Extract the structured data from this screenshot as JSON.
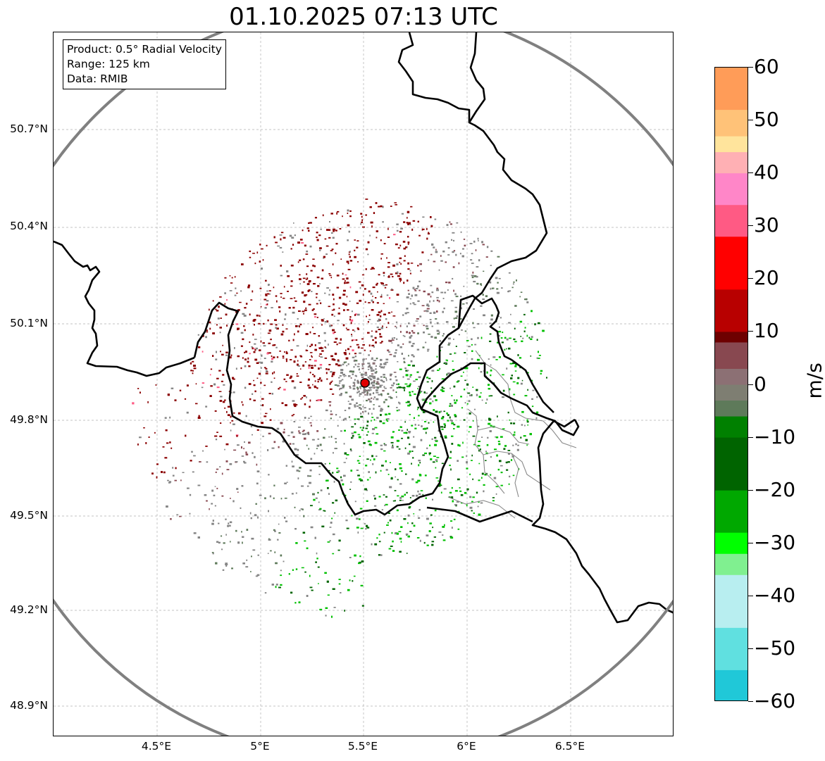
{
  "title": "01.10.2025 07:13 UTC",
  "info": {
    "product": "Product: 0.5° Radial Velocity",
    "range": "Range: 125 km",
    "source": "Data: RMIB"
  },
  "lat_ticks": [
    "50.7°N",
    "50.4°N",
    "50.1°N",
    "49.8°N",
    "49.5°N",
    "49.2°N",
    "48.9°N"
  ],
  "lon_ticks": [
    "4.5°E",
    "5°E",
    "5.5°E",
    "6°E",
    "6.5°E"
  ],
  "colorbar": {
    "unit": "m/s",
    "ticks": [
      "60",
      "50",
      "40",
      "30",
      "20",
      "10",
      "0",
      "−10",
      "−20",
      "−30",
      "−40",
      "−50",
      "−60"
    ],
    "min": -60,
    "max": 60,
    "stops": [
      {
        "v": 60,
        "c": "#ff9c58"
      },
      {
        "v": 52,
        "c": "#ffc278"
      },
      {
        "v": 47,
        "c": "#ffe49c"
      },
      {
        "v": 44,
        "c": "#ffb0b4"
      },
      {
        "v": 40,
        "c": "#ff86c8"
      },
      {
        "v": 34,
        "c": "#ff5a84"
      },
      {
        "v": 28,
        "c": "#ff0000"
      },
      {
        "v": 18,
        "c": "#b80000"
      },
      {
        "v": 10,
        "c": "#6e0000"
      },
      {
        "v": 8,
        "c": "#884850"
      },
      {
        "v": 3,
        "c": "#8c7074"
      },
      {
        "v": 0,
        "c": "#7e7e72"
      },
      {
        "v": -3,
        "c": "#5e7a5a"
      },
      {
        "v": -6,
        "c": "#008000"
      },
      {
        "v": -10,
        "c": "#006400"
      },
      {
        "v": -20,
        "c": "#00a800"
      },
      {
        "v": -28,
        "c": "#00ff00"
      },
      {
        "v": -32,
        "c": "#80f090"
      },
      {
        "v": -36,
        "c": "#b8eef0"
      },
      {
        "v": -46,
        "c": "#60e0e0"
      },
      {
        "v": -54,
        "c": "#20c8d8"
      },
      {
        "v": -60,
        "c": "#2080c0"
      }
    ]
  },
  "radar_site": {
    "lon": 5.5,
    "lat": 49.915
  },
  "colors": {
    "outbound_dark": "#8b0000",
    "outbound_light": "#ff5a84",
    "near_zero": "#858585",
    "zero_green": "#5e7a5a",
    "inbound_dark": "#006400",
    "inbound_light": "#00c000",
    "range_ring": "#808080",
    "border": "#000000"
  }
}
